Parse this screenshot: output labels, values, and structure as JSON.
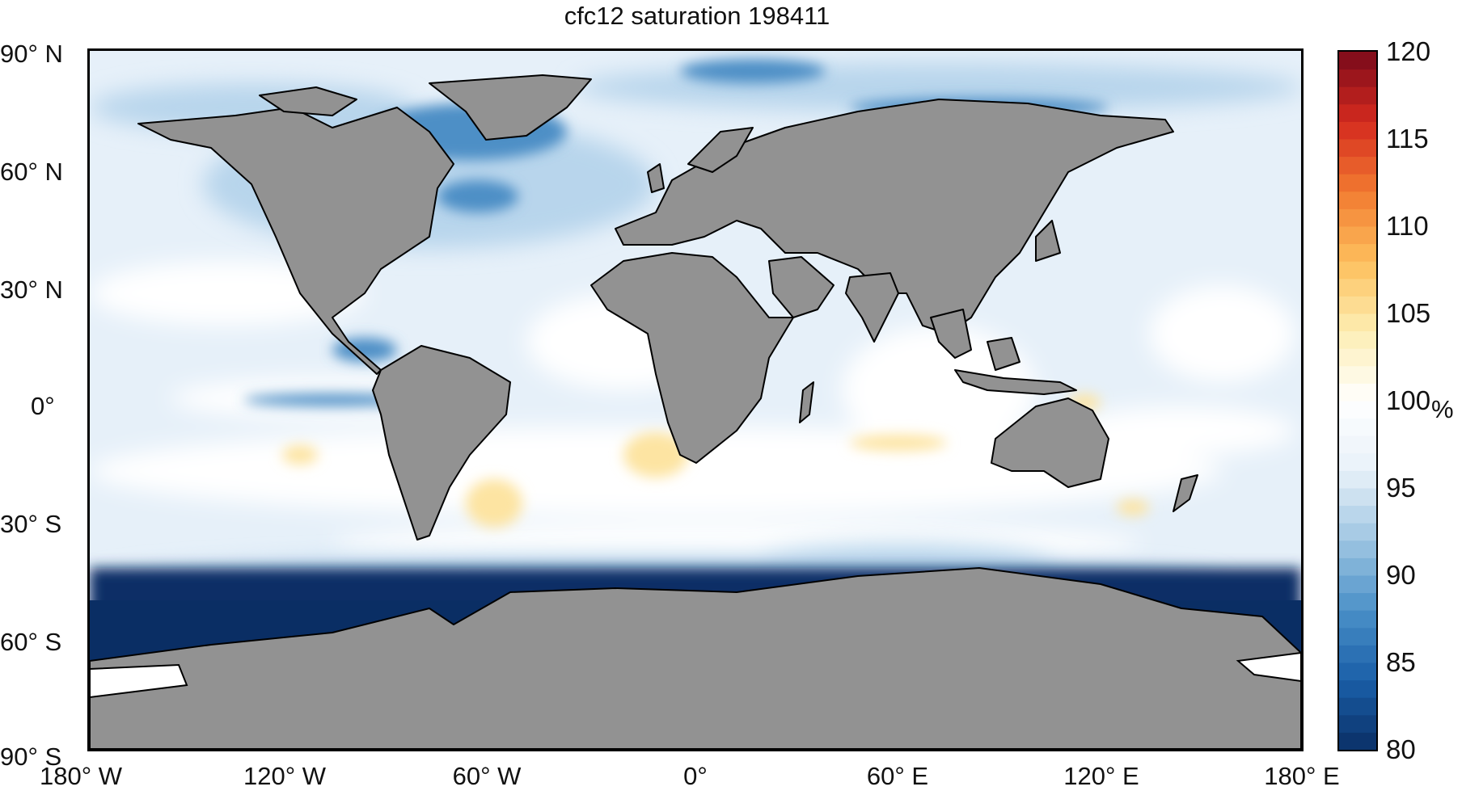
{
  "title": "cfc12 saturation 198411",
  "axes": {
    "latitude_labels": [
      "90° N",
      "60° N",
      "30° N",
      "0°",
      "30° S",
      "60° S",
      "90° S"
    ],
    "longitude_labels": [
      "180° W",
      "120° W",
      "60° W",
      "0°",
      "60° E",
      "120° E",
      "180° E"
    ]
  },
  "colorbar": {
    "ticks": [
      "120",
      "115",
      "110",
      "105",
      "100",
      "95",
      "90",
      "85",
      "80"
    ],
    "unit": "%",
    "range": [
      80,
      120
    ],
    "colors": [
      "#0a2f66",
      "#1a5fa8",
      "#4a90c8",
      "#9fc6e2",
      "#e8f1f9",
      "#ffffff",
      "#fdeeb3",
      "#fdbf5c",
      "#f27a30",
      "#d42a1f",
      "#7a0a1a"
    ]
  },
  "colors": {
    "land": "#929292",
    "coastline": "#000000",
    "ocean_base": "#e8f1f9",
    "undersaturated": "#0a2f66",
    "oversaturated": "#fde7a4"
  }
}
